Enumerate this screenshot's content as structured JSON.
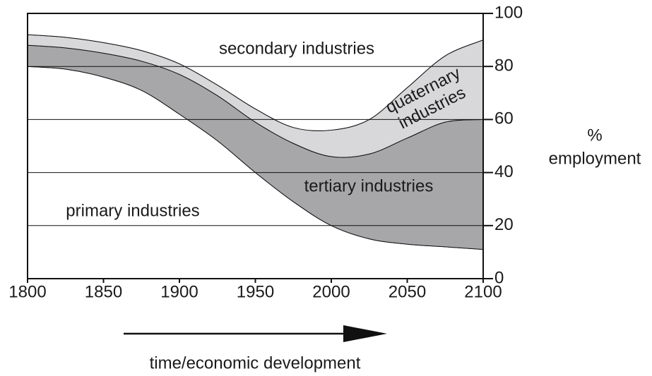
{
  "chart_data": {
    "type": "stacked_area",
    "x": [
      1800,
      1825,
      1850,
      1875,
      1900,
      1925,
      1950,
      1975,
      2000,
      2025,
      2050,
      2075,
      2100
    ],
    "series": [
      {
        "name": "primary industries",
        "color": "#ffffff",
        "values": [
          80,
          79,
          76,
          71,
          62,
          52,
          40,
          29,
          20,
          15,
          13,
          12,
          11
        ]
      },
      {
        "name": "tertiary industries",
        "color": "#a7a7a9",
        "values": [
          8,
          8,
          9,
          11,
          15,
          17,
          19,
          22,
          26,
          32,
          40,
          47,
          49
        ]
      },
      {
        "name": "quaternary industries",
        "color": "#d8d8da",
        "values": [
          4,
          4,
          4,
          4,
          4,
          4,
          5,
          6,
          10,
          13,
          19,
          25,
          30
        ]
      },
      {
        "name": "secondary industries",
        "color": "#ffffff",
        "values": [
          8,
          9,
          11,
          14,
          19,
          27,
          36,
          43,
          44,
          40,
          28,
          16,
          10
        ]
      }
    ],
    "xlim": [
      1800,
      2100
    ],
    "xticks": [
      1800,
      1850,
      1900,
      1950,
      2000,
      2050,
      2100
    ],
    "ylim": [
      0,
      100
    ],
    "yticks": [
      0,
      20,
      40,
      60,
      80,
      100
    ],
    "y_label": [
      "%",
      "employment"
    ],
    "x_label": "time/economic development",
    "grid": true
  }
}
